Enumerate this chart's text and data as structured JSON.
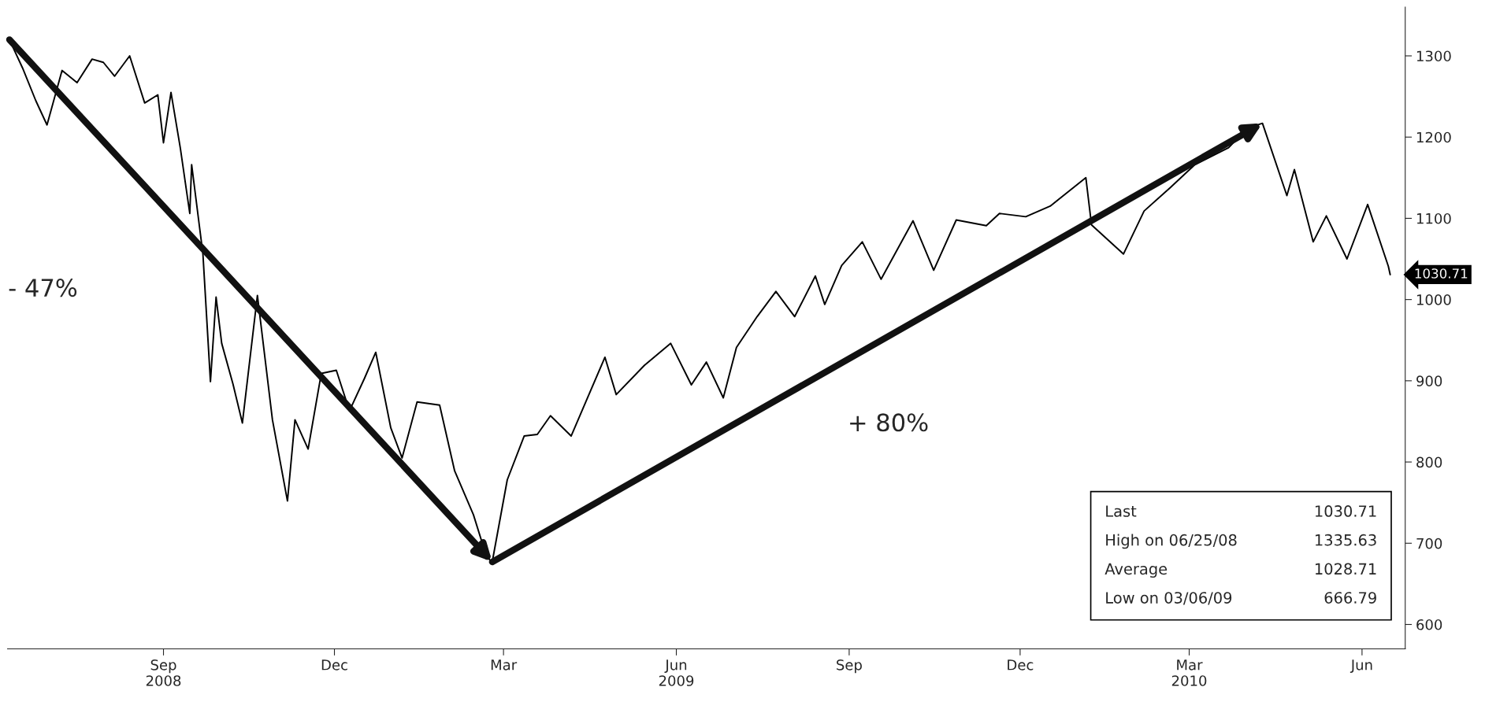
{
  "chart_data": {
    "type": "line",
    "x": [
      "2008-06-25",
      "2008-07-02",
      "2008-07-09",
      "2008-07-15",
      "2008-07-23",
      "2008-07-31",
      "2008-08-08",
      "2008-08-14",
      "2008-08-20",
      "2008-08-28",
      "2008-09-05",
      "2008-09-12",
      "2008-09-15",
      "2008-09-19",
      "2008-09-24",
      "2008-09-29",
      "2008-09-30",
      "2008-10-06",
      "2008-10-10",
      "2008-10-13",
      "2008-10-16",
      "2008-10-22",
      "2008-10-27",
      "2008-11-04",
      "2008-11-12",
      "2008-11-20",
      "2008-11-24",
      "2008-12-01",
      "2008-12-08",
      "2008-12-16",
      "2008-12-23",
      "2008-12-31",
      "2009-01-06",
      "2009-01-14",
      "2009-01-20",
      "2009-01-28",
      "2009-02-09",
      "2009-02-17",
      "2009-02-27",
      "2009-03-06",
      "2009-03-09",
      "2009-03-17",
      "2009-03-26",
      "2009-04-02",
      "2009-04-09",
      "2009-04-20",
      "2009-05-08",
      "2009-05-14",
      "2009-05-29",
      "2009-06-12",
      "2009-06-23",
      "2009-07-01",
      "2009-07-10",
      "2009-07-17",
      "2009-07-28",
      "2009-08-07",
      "2009-08-17",
      "2009-08-28",
      "2009-09-02",
      "2009-09-11",
      "2009-09-22",
      "2009-10-02",
      "2009-10-19",
      "2009-10-30",
      "2009-11-11",
      "2009-11-27",
      "2009-12-04",
      "2009-12-18",
      "2009-12-31",
      "2010-01-19",
      "2010-01-22",
      "2010-02-08",
      "2010-02-19",
      "2010-03-05",
      "2010-03-18",
      "2010-04-05",
      "2010-04-15",
      "2010-04-23",
      "2010-05-06",
      "2010-05-10",
      "2010-05-20",
      "2010-05-27",
      "2010-06-07",
      "2010-06-18",
      "2010-06-29",
      "2010-06-30"
    ],
    "series": [
      {
        "color": "#000000",
        "values": [
          1320,
          1285,
          1245,
          1215,
          1282,
          1267,
          1296,
          1292,
          1275,
          1300,
          1242,
          1252,
          1193,
          1255,
          1186,
          1106,
          1166,
          1056,
          899,
          1003,
          946,
          896,
          848,
          1005,
          852,
          752,
          852,
          816,
          909,
          913,
          863,
          903,
          935,
          842,
          805,
          874,
          870,
          789,
          735,
          683,
          677,
          778,
          832,
          834,
          857,
          832,
          929,
          883,
          919,
          946,
          895,
          923,
          879,
          941,
          979,
          1010,
          979,
          1029,
          994,
          1042,
          1071,
          1025,
          1097,
          1036,
          1098,
          1091,
          1106,
          1102,
          1115,
          1150,
          1092,
          1056,
          1109,
          1138,
          1166,
          1187,
          1211,
          1217,
          1128,
          1160,
          1071,
          1103,
          1050,
          1117,
          1041,
          1030.71
        ]
      }
    ],
    "xlim": [
      "2008-06-24",
      "2010-07-08"
    ],
    "xticks": [
      {
        "value": "2008-09-15",
        "label": "Sep\n2008"
      },
      {
        "value": "2008-12-15",
        "label": "Dec"
      },
      {
        "value": "2009-03-15",
        "label": "Mar"
      },
      {
        "value": "2009-06-15",
        "label": "Jun\n2009"
      },
      {
        "value": "2009-09-15",
        "label": "Sep"
      },
      {
        "value": "2009-12-15",
        "label": "Dec"
      },
      {
        "value": "2010-03-15",
        "label": "Mar\n2010"
      },
      {
        "value": "2010-06-15",
        "label": "Jun"
      }
    ],
    "ylim": [
      570,
      1360
    ],
    "yticks": [
      600,
      700,
      800,
      900,
      1000,
      1100,
      1200,
      1300
    ],
    "grid": false,
    "legend": false,
    "marker": "none",
    "line_style": "solid",
    "annotations": [
      "- 47%",
      "+ 80%",
      {
        "text": "1030.71",
        "x": "2010-06-30",
        "y": 1030.71
      },
      "Last",
      "1030.71",
      "High on 06/25/08",
      "1335.63",
      "Average",
      "1028.71",
      "Low on 03/06/09",
      "666.79"
    ]
  }
}
